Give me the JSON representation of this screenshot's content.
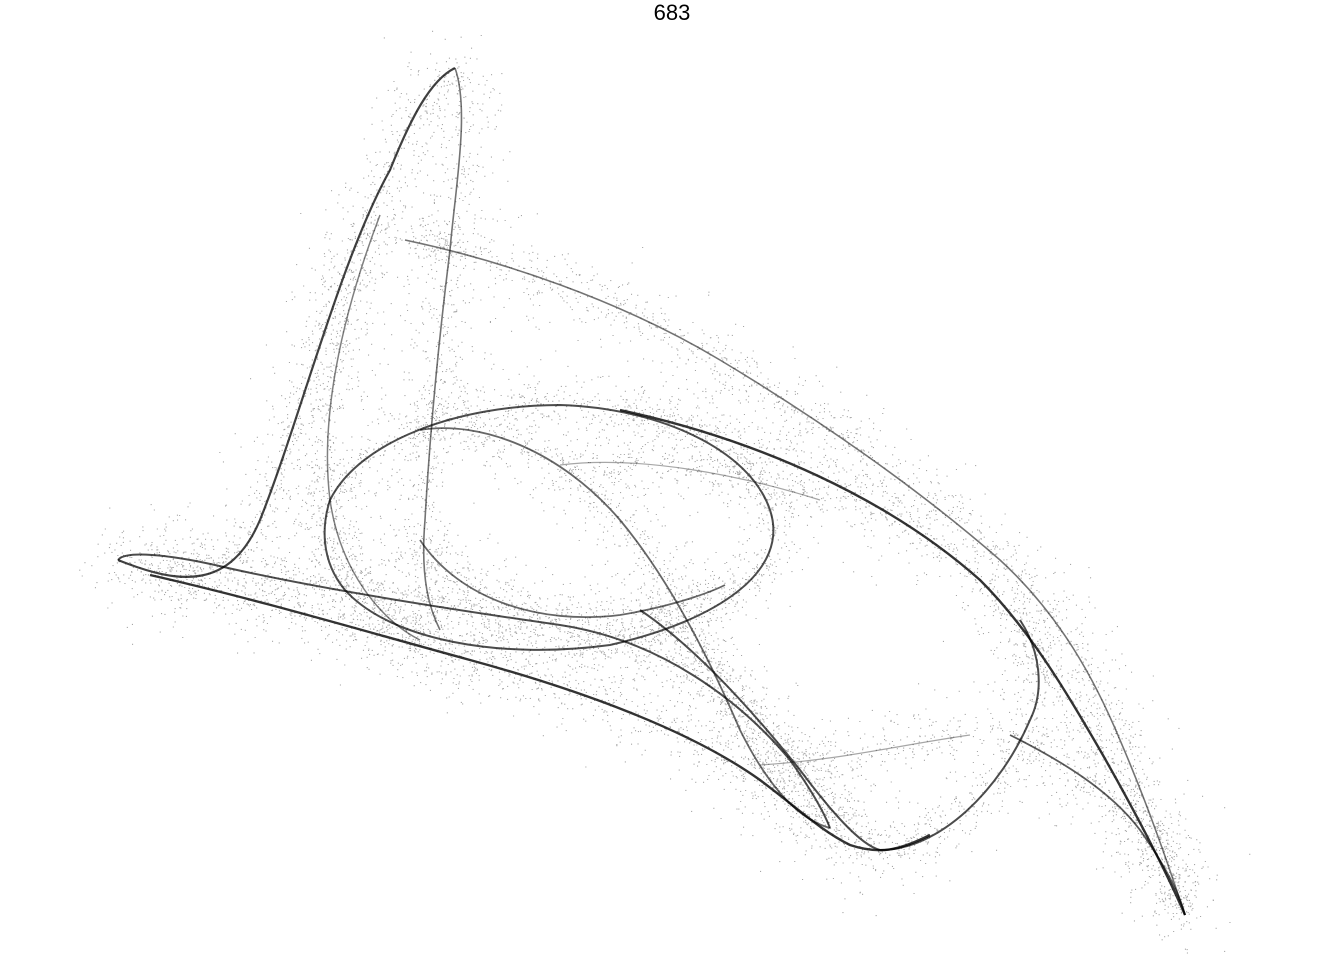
{
  "title": "683",
  "ink_color": "#000000",
  "background_color": "#ffffff"
}
